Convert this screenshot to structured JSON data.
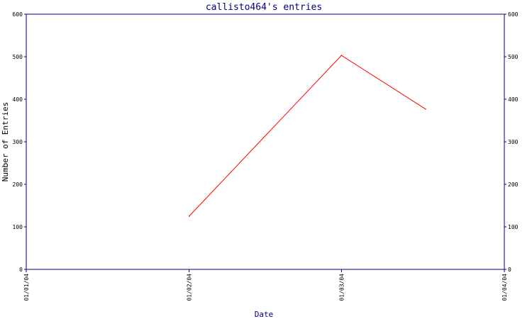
{
  "chart_data": {
    "type": "line",
    "title": "callisto464's entries",
    "xlabel": "Date",
    "ylabel": "Number of Entries",
    "x_ticks": [
      "01/01/04",
      "01/02/04",
      "01/03/04",
      "01/04/04"
    ],
    "y_ticks": [
      0,
      100,
      200,
      300,
      400,
      500,
      600
    ],
    "ylim": [
      0,
      600
    ],
    "xlim": [
      "2004-01-01",
      "2004-04-01"
    ],
    "series": [
      {
        "x": [
          "2004-02-01",
          "2004-03-01",
          "2004-03-17"
        ],
        "values": [
          125,
          503,
          377
        ],
        "color": "#ff0000"
      }
    ],
    "y_axis_right": true,
    "grid": false,
    "colors": {
      "axis": "#000080",
      "line": "#ff0000"
    }
  }
}
